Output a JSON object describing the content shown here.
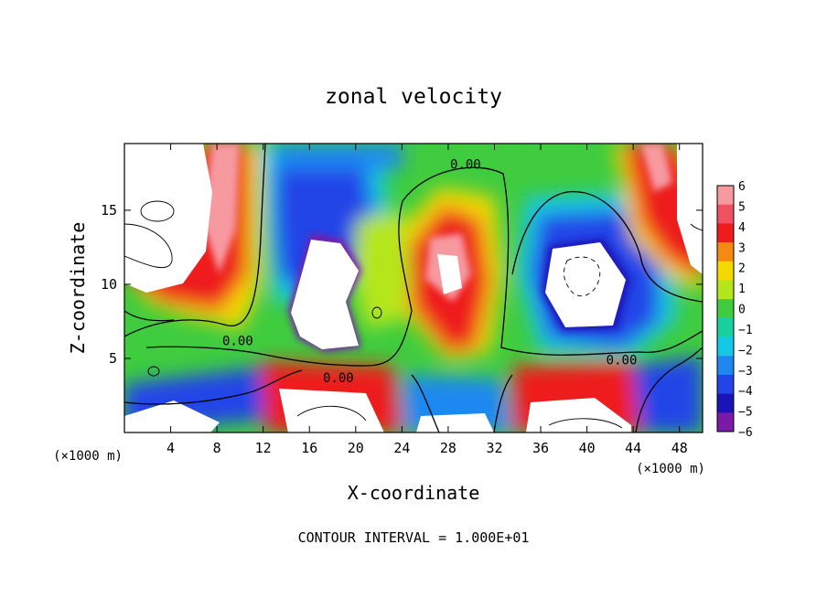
{
  "chart_data": {
    "type": "heatmap",
    "title": "zonal velocity",
    "xlabel": "X-coordinate",
    "ylabel": "Z-coordinate",
    "x_units": "(×1000 m)",
    "z_units": "(×1000 m)",
    "footer": "CONTOUR INTERVAL = 1.000E+01",
    "xlim": [
      0,
      50
    ],
    "ylim": [
      0,
      19.5
    ],
    "x_ticks": [
      4,
      8,
      12,
      16,
      20,
      24,
      28,
      32,
      36,
      40,
      44,
      48
    ],
    "y_ticks": [
      5,
      10,
      15
    ],
    "colorbar": {
      "ticks": [
        6,
        5,
        4,
        3,
        2,
        1,
        0,
        -1,
        -2,
        -3,
        -4,
        -5,
        -6
      ],
      "labels": [
        "6",
        "5",
        "4",
        "3",
        "2",
        "1",
        "0",
        "−1",
        "−2",
        "−3",
        "−4",
        "−5",
        "−6"
      ],
      "colors": [
        "#f79aa0",
        "#f05060",
        "#ee1c1c",
        "#f58a10",
        "#f5d800",
        "#b5e61d",
        "#3fcc3f",
        "#19d1a0",
        "#16c8e6",
        "#1e88f0",
        "#2244e8",
        "#1a14b8",
        "#7a1aa8"
      ]
    },
    "contour_labels": [
      {
        "text": "0.00",
        "x": 29.5,
        "z": 18.1
      },
      {
        "text": "0.00",
        "x": 9.8,
        "z": 6.2
      },
      {
        "text": "0.00",
        "x": 18.5,
        "z": 3.7
      },
      {
        "text": "0.00",
        "x": 43.0,
        "z": 4.9
      }
    ]
  }
}
